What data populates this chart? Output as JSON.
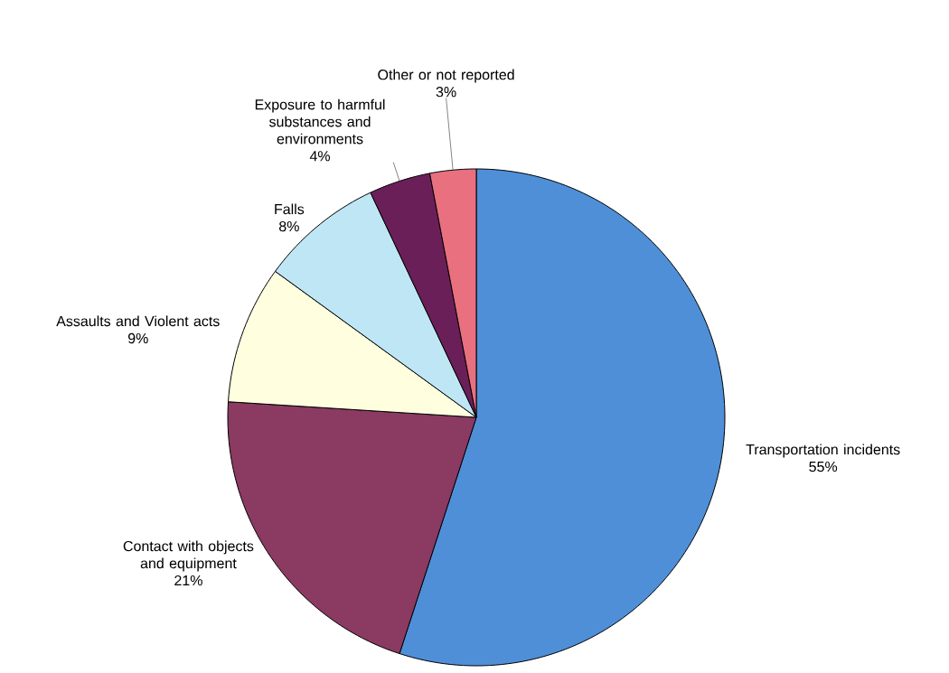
{
  "chart_data": {
    "type": "pie",
    "categories": [
      "Transportation incidents",
      "Contact with objects and equipment",
      "Assaults and Violent acts",
      "Falls",
      "Exposure to harmful substances and environments",
      "Other or not reported"
    ],
    "values": [
      55,
      21,
      9,
      8,
      4,
      3
    ],
    "colors": [
      "#4f8fd8",
      "#8b3a62",
      "#ffffe0",
      "#bfe6f5",
      "#6b1f58",
      "#e8707f"
    ],
    "value_labels": [
      "55%",
      "21%",
      "9%",
      "8%",
      "4%",
      "3%"
    ]
  }
}
